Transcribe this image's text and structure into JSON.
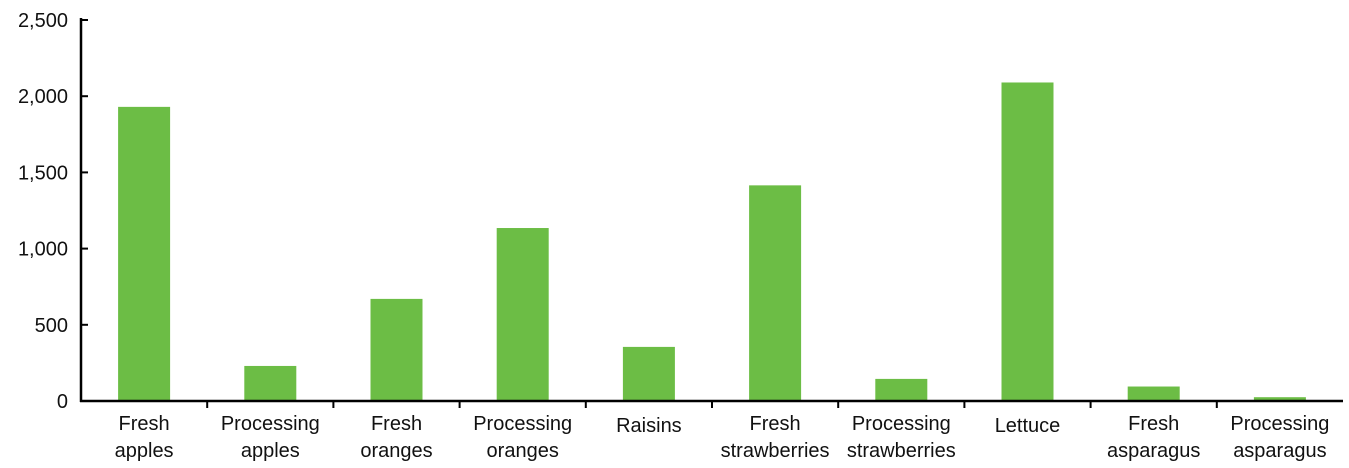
{
  "chart_data": {
    "type": "bar",
    "title": "",
    "xlabel": "",
    "ylabel": "",
    "ylim": [
      0,
      2500
    ],
    "yticks": [
      0,
      500,
      1000,
      1500,
      2000,
      2500
    ],
    "ytick_labels": [
      "0",
      "500",
      "1,000",
      "1,500",
      "2,000",
      "2,500"
    ],
    "grid": false,
    "legend": "none",
    "bar_color": "#6cbd45",
    "axis_color": "#000000",
    "categories": [
      [
        "Fresh",
        "apples"
      ],
      [
        "Processing",
        "apples"
      ],
      [
        "Fresh",
        "oranges"
      ],
      [
        "Processing",
        "oranges"
      ],
      [
        "Raisins"
      ],
      [
        "Fresh",
        "strawberries"
      ],
      [
        "Processing",
        "strawberries"
      ],
      [
        "Lettuce"
      ],
      [
        "Fresh",
        "asparagus"
      ],
      [
        "Processing",
        "asparagus"
      ]
    ],
    "values": [
      1930,
      230,
      670,
      1135,
      355,
      1415,
      145,
      2090,
      95,
      25
    ]
  }
}
